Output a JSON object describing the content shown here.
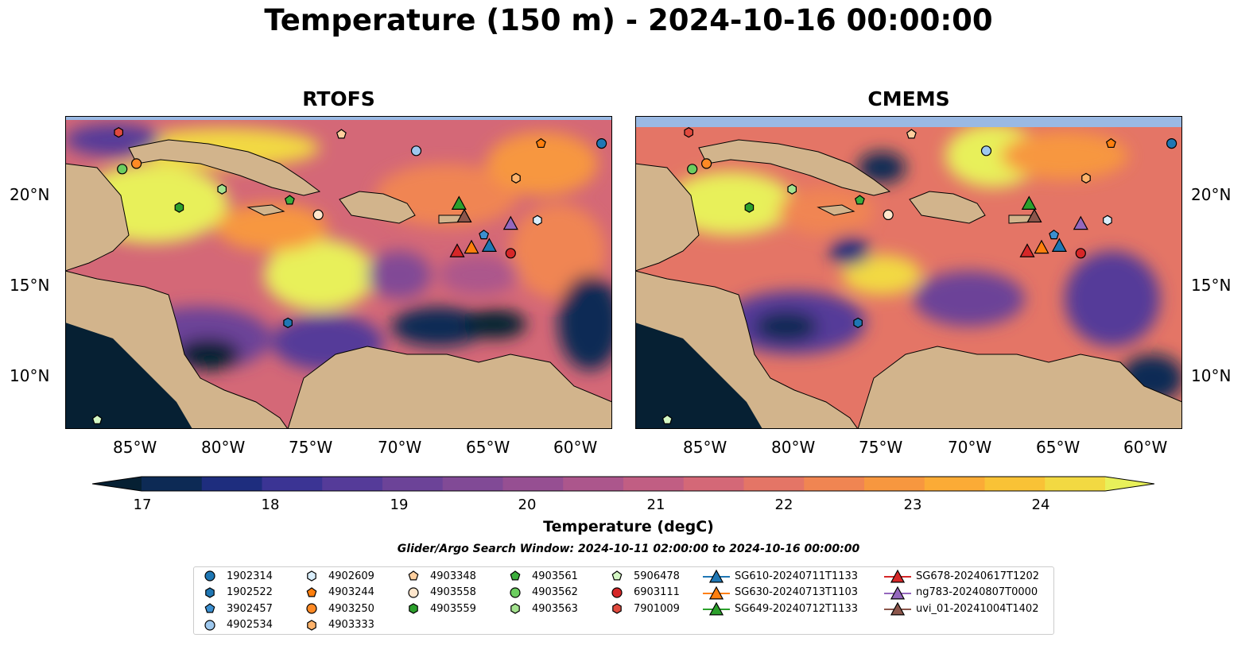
{
  "title": "Temperature (150 m) - 2024-10-16 00:00:00",
  "panels": [
    {
      "name": "RTOFS"
    },
    {
      "name": "CMEMS"
    }
  ],
  "lon_ticks": [
    "85°W",
    "80°W",
    "75°W",
    "70°W",
    "65°W",
    "60°W"
  ],
  "lat_ticks": [
    "20°N",
    "15°N",
    "10°N"
  ],
  "colorbar": {
    "label": "Temperature (degC)",
    "ticks": [
      "17",
      "18",
      "19",
      "20",
      "21",
      "22",
      "23",
      "24"
    ],
    "range": [
      16.75,
      24.5
    ],
    "colormap": "thermal",
    "colors": [
      "#062033",
      "#0d2a55",
      "#1e2d7e",
      "#3b3494",
      "#553b99",
      "#6c4398",
      "#814a96",
      "#964f92",
      "#ac568c",
      "#c15e83",
      "#d46877",
      "#e47566",
      "#f08552",
      "#f7973f",
      "#fbab36",
      "#f9c236",
      "#f2d942",
      "#e8f05a"
    ]
  },
  "search_window": "Glider/Argo Search Window: 2024-10-11 02:00:00 to 2024-10-16 00:00:00",
  "legend": [
    {
      "label": "1902314",
      "marker": "circle",
      "color": "#1f77b4"
    },
    {
      "label": "1902522",
      "marker": "hexagon",
      "color": "#1f77b4"
    },
    {
      "label": "3902457",
      "marker": "pentagon",
      "color": "#3b8fd0"
    },
    {
      "label": "4902534",
      "marker": "circle",
      "color": "#9ec8ee"
    },
    {
      "label": "4902609",
      "marker": "hexagon",
      "color": "#d9eefc"
    },
    {
      "label": "4903244",
      "marker": "pentagon",
      "color": "#ff7f0e"
    },
    {
      "label": "4903250",
      "marker": "circle",
      "color": "#ff8a25"
    },
    {
      "label": "4903333",
      "marker": "hexagon",
      "color": "#ffb36b"
    },
    {
      "label": "4903348",
      "marker": "pentagon",
      "color": "#ffcf9e"
    },
    {
      "label": "4903558",
      "marker": "circle",
      "color": "#ffe6cc"
    },
    {
      "label": "4903559",
      "marker": "hexagon",
      "color": "#2ca02c"
    },
    {
      "label": "4903561",
      "marker": "pentagon",
      "color": "#3dae3d"
    },
    {
      "label": "4903562",
      "marker": "circle",
      "color": "#6ccd5f"
    },
    {
      "label": "4903563",
      "marker": "hexagon",
      "color": "#a4e28f"
    },
    {
      "label": "5906478",
      "marker": "pentagon",
      "color": "#d4f7c4"
    },
    {
      "label": "6903111",
      "marker": "circle",
      "color": "#d62728"
    },
    {
      "label": "7901009",
      "marker": "hexagon",
      "color": "#e04a3e"
    },
    {
      "label": "SG610-20240711T1133",
      "marker": "triangle",
      "color": "#1f77b4"
    },
    {
      "label": "SG630-20240713T1103",
      "marker": "triangle",
      "color": "#ff7f0e"
    },
    {
      "label": "SG649-20240712T1133",
      "marker": "triangle",
      "color": "#2ca02c"
    },
    {
      "label": "SG678-20240617T1202",
      "marker": "triangle",
      "color": "#d62728"
    },
    {
      "label": "ng783-20240807T0000",
      "marker": "triangle",
      "color": "#9467bd"
    },
    {
      "label": "uvi_01-20241004T1402",
      "marker": "triangle",
      "color": "#8c564b"
    }
  ],
  "platforms": [
    {
      "id": "1902314",
      "lon": -58.9,
      "lat": 22.7
    },
    {
      "id": "1902522",
      "lon": -76.5,
      "lat": 12.9
    },
    {
      "id": "3902457",
      "lon": -65.5,
      "lat": 17.7
    },
    {
      "id": "4902534",
      "lon": -69.3,
      "lat": 22.3
    },
    {
      "id": "4902609",
      "lon": -62.5,
      "lat": 18.5
    },
    {
      "id": "4903244",
      "lon": -62.3,
      "lat": 22.7
    },
    {
      "id": "4903250",
      "lon": -85.0,
      "lat": 21.6
    },
    {
      "id": "4903333",
      "lon": -63.7,
      "lat": 20.8
    },
    {
      "id": "4903348",
      "lon": -73.5,
      "lat": 23.2
    },
    {
      "id": "4903558",
      "lon": -74.8,
      "lat": 18.8
    },
    {
      "id": "4903559",
      "lon": -82.6,
      "lat": 19.2
    },
    {
      "id": "4903561",
      "lon": -76.4,
      "lat": 19.6
    },
    {
      "id": "4903562",
      "lon": -85.8,
      "lat": 21.3
    },
    {
      "id": "4903563",
      "lon": -80.2,
      "lat": 20.2
    },
    {
      "id": "5906478",
      "lon": -87.2,
      "lat": 7.6
    },
    {
      "id": "6903111",
      "lon": -64.0,
      "lat": 16.7
    },
    {
      "id": "7901009",
      "lon": -86.0,
      "lat": 23.3
    },
    {
      "id": "SG610-20240711T1133",
      "lon": -65.2,
      "lat": 17.1
    },
    {
      "id": "SG630-20240713T1103",
      "lon": -66.2,
      "lat": 17.0
    },
    {
      "id": "SG649-20240712T1133",
      "lon": -66.9,
      "lat": 19.4
    },
    {
      "id": "SG678-20240617T1202",
      "lon": -67.0,
      "lat": 16.8
    },
    {
      "id": "ng783-20240807T0000",
      "lon": -64.0,
      "lat": 18.3
    },
    {
      "id": "uvi_01-20241004T1402",
      "lon": -66.6,
      "lat": 18.7
    }
  ]
}
